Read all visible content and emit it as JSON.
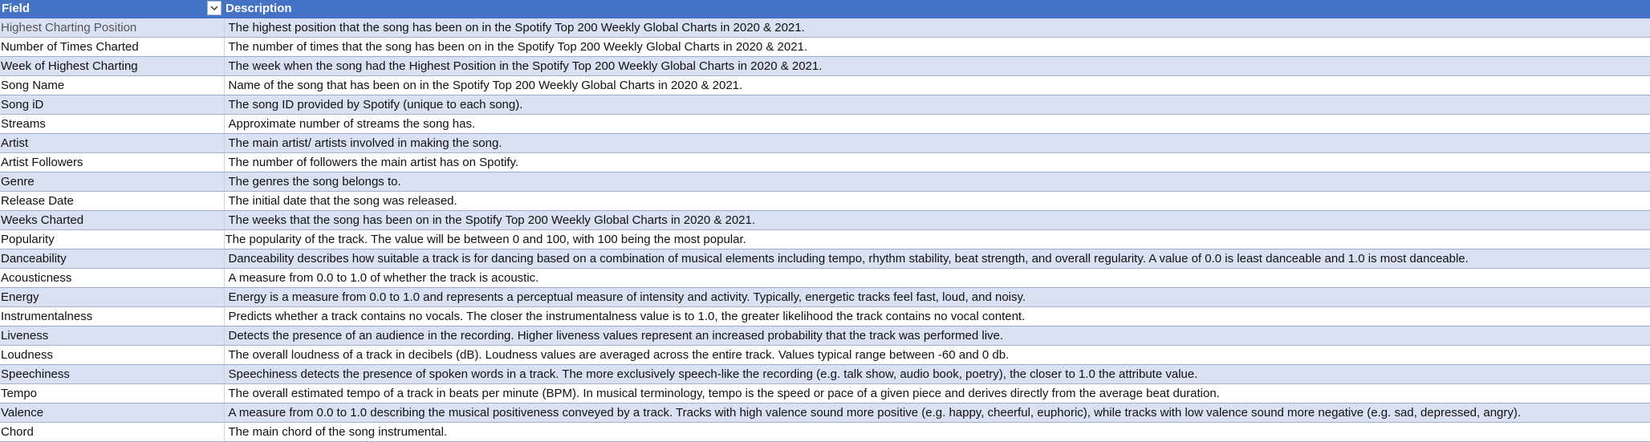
{
  "header": {
    "field": "Field",
    "description": "Description",
    "filter_icon": "chevron-down-icon"
  },
  "colors": {
    "header_bg": "#4472c4",
    "band_bg": "#d9e1f2",
    "plain_bg": "#ffffff"
  },
  "rows": [
    {
      "field": "Highest Charting Position",
      "description": "The highest position that the song has been on in the Spotify Top 200 Weekly Global Charts in 2020 & 2021."
    },
    {
      "field": "Number of Times Charted",
      "description": "The number of times that the song has been on in the Spotify Top 200 Weekly Global Charts in 2020 & 2021."
    },
    {
      "field": "Week of Highest Charting",
      "description": "The week when the song had the Highest Position in the Spotify Top 200 Weekly Global Charts in 2020 & 2021."
    },
    {
      "field": "Song Name",
      "description": "Name of the song that has been on in the Spotify Top 200 Weekly Global Charts in 2020 & 2021."
    },
    {
      "field": "Song iD",
      "description": "The song ID provided by Spotify (unique to each song)."
    },
    {
      "field": "Streams",
      "description": "Approximate number of streams the song has."
    },
    {
      "field": "Artist",
      "description": "The main artist/ artists involved in making the song."
    },
    {
      "field": "Artist Followers",
      "description": "The number of followers the main artist has on Spotify."
    },
    {
      "field": "Genre",
      "description": "The genres the song belongs to."
    },
    {
      "field": "Release Date",
      "description": "The initial date that the song was released."
    },
    {
      "field": "Weeks Charted",
      "description": "The weeks that the song has been on in the Spotify Top 200 Weekly Global Charts in 2020 & 2021."
    },
    {
      "field": "Popularity",
      "description": "The popularity of the track. The value will be between 0 and 100, with 100 being the most popular."
    },
    {
      "field": "Danceability",
      "description": "Danceability describes how suitable a track is for dancing based on a combination of musical elements including tempo, rhythm stability, beat strength, and overall regularity. A value of 0.0 is least danceable and 1.0 is most danceable."
    },
    {
      "field": "Acousticness",
      "description": "A measure from 0.0 to 1.0 of whether the track is acoustic."
    },
    {
      "field": "Energy",
      "description": "Energy is a measure from 0.0 to 1.0 and represents a perceptual measure of intensity and activity. Typically, energetic tracks feel fast, loud, and noisy."
    },
    {
      "field": "Instrumentalness",
      "description": "Predicts whether a track contains no vocals. The closer the instrumentalness value is to 1.0, the greater likelihood the track contains no vocal content."
    },
    {
      "field": "Liveness",
      "description": "Detects the presence of an audience in the recording. Higher liveness values represent an increased probability that the track was performed live."
    },
    {
      "field": "Loudness",
      "description": "The overall loudness of a track in decibels (dB). Loudness values are averaged across the entire track. Values typical range between -60 and 0 db."
    },
    {
      "field": "Speechiness",
      "description": "Speechiness detects the presence of spoken words in a track. The more exclusively speech-like the recording (e.g. talk show, audio book, poetry), the closer to 1.0 the attribute value."
    },
    {
      "field": "Tempo",
      "description": "The overall estimated tempo of a track in beats per minute (BPM). In musical terminology, tempo is the speed or pace of a given piece and derives directly from the average beat duration."
    },
    {
      "field": "Valence",
      "description": "A measure from 0.0 to 1.0 describing the musical positiveness conveyed by a track. Tracks with high valence sound more positive (e.g. happy, cheerful, euphoric), while tracks with low valence sound more negative (e.g. sad, depressed, angry)."
    },
    {
      "field": "Chord",
      "description": "The main chord of the song instrumental."
    }
  ]
}
